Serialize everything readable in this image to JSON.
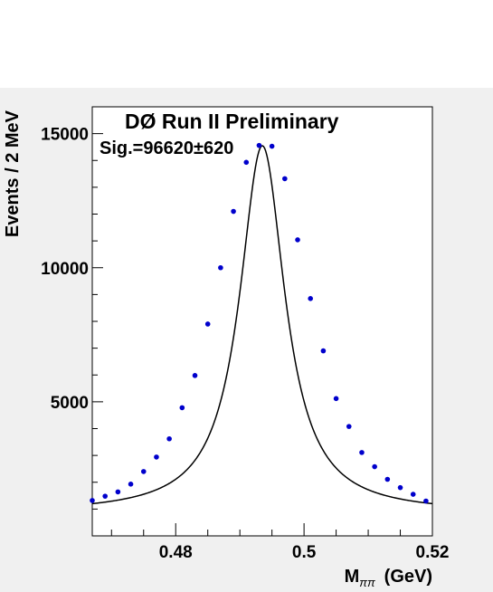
{
  "chart_data": {
    "type": "scatter",
    "title": "DØ Run II Preliminary",
    "annotation": "Sig.=96620±620",
    "xlabel_main": "M",
    "xlabel_sub": "ππ",
    "xlabel_unit": "(GeV)",
    "ylabel": "Events / 2 MeV",
    "xlim": [
      0.467,
      0.52
    ],
    "ylim": [
      0,
      16000
    ],
    "x_ticks": [
      0.48,
      0.5,
      0.52
    ],
    "x_tick_labels": [
      "0.48",
      "0.5",
      "0.52"
    ],
    "y_ticks": [
      5000,
      10000,
      15000
    ],
    "y_tick_labels": [
      "5000",
      "10000",
      "15000"
    ],
    "grid": false,
    "series": [
      {
        "kind": "points",
        "color": "#0000cc",
        "x": [
          0.467,
          0.469,
          0.471,
          0.473,
          0.475,
          0.477,
          0.479,
          0.481,
          0.483,
          0.485,
          0.487,
          0.489,
          0.491,
          0.493,
          0.495,
          0.497,
          0.499,
          0.501,
          0.503,
          0.505,
          0.507,
          0.509,
          0.511,
          0.513,
          0.515,
          0.517,
          0.519
        ],
        "y": [
          1320,
          1480,
          1640,
          1930,
          2400,
          2940,
          3620,
          4780,
          5980,
          7900,
          10000,
          12100,
          13930,
          14560,
          14530,
          13320,
          11040,
          8850,
          6900,
          5120,
          4080,
          3110,
          2580,
          2110,
          1800,
          1550,
          1300
        ]
      },
      {
        "kind": "fit-curve",
        "color": "#000000",
        "center": 0.4935,
        "gamma": 0.0086,
        "peak": 13700,
        "background": 850
      }
    ]
  }
}
